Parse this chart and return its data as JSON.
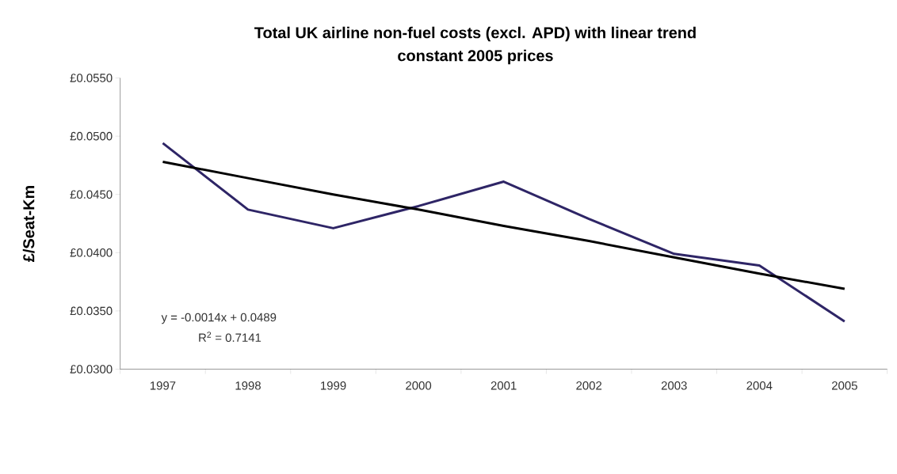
{
  "chart_data": {
    "type": "line",
    "title": "Total UK airline non-fuel costs (excl. APD) with linear trend",
    "subtitle": "constant 2005 prices",
    "ylabel": "£/Seat-Km",
    "categories": [
      "1997",
      "1998",
      "1999",
      "2000",
      "2001",
      "2002",
      "2003",
      "2004",
      "2005"
    ],
    "series": [
      {
        "color": "#2e2566",
        "values": [
          0.0494,
          0.0437,
          0.0421,
          0.044,
          0.0461,
          0.0429,
          0.0399,
          0.0389,
          0.0341
        ]
      },
      {
        "type": "line",
        "color": "#000000",
        "values": [
          0.0478,
          0.0464,
          0.045,
          0.0437,
          0.0423,
          0.041,
          0.0396,
          0.0382,
          0.0369
        ]
      }
    ],
    "ylim": [
      0.03,
      0.055
    ],
    "yticks": [
      {
        "value": 0.03,
        "label": "£0.0300"
      },
      {
        "value": 0.035,
        "label": "£0.0350"
      },
      {
        "value": 0.04,
        "label": "£0.0400"
      },
      {
        "value": 0.045,
        "label": "£0.0450"
      },
      {
        "value": 0.05,
        "label": "£0.0500"
      },
      {
        "value": 0.055,
        "label": "£0.0550"
      }
    ],
    "annotations": [
      "y = -0.0014x + 0.0489",
      "R$^{2}$ = 0.7141"
    ],
    "grid": false,
    "marker": "none",
    "line_style": "solid"
  }
}
